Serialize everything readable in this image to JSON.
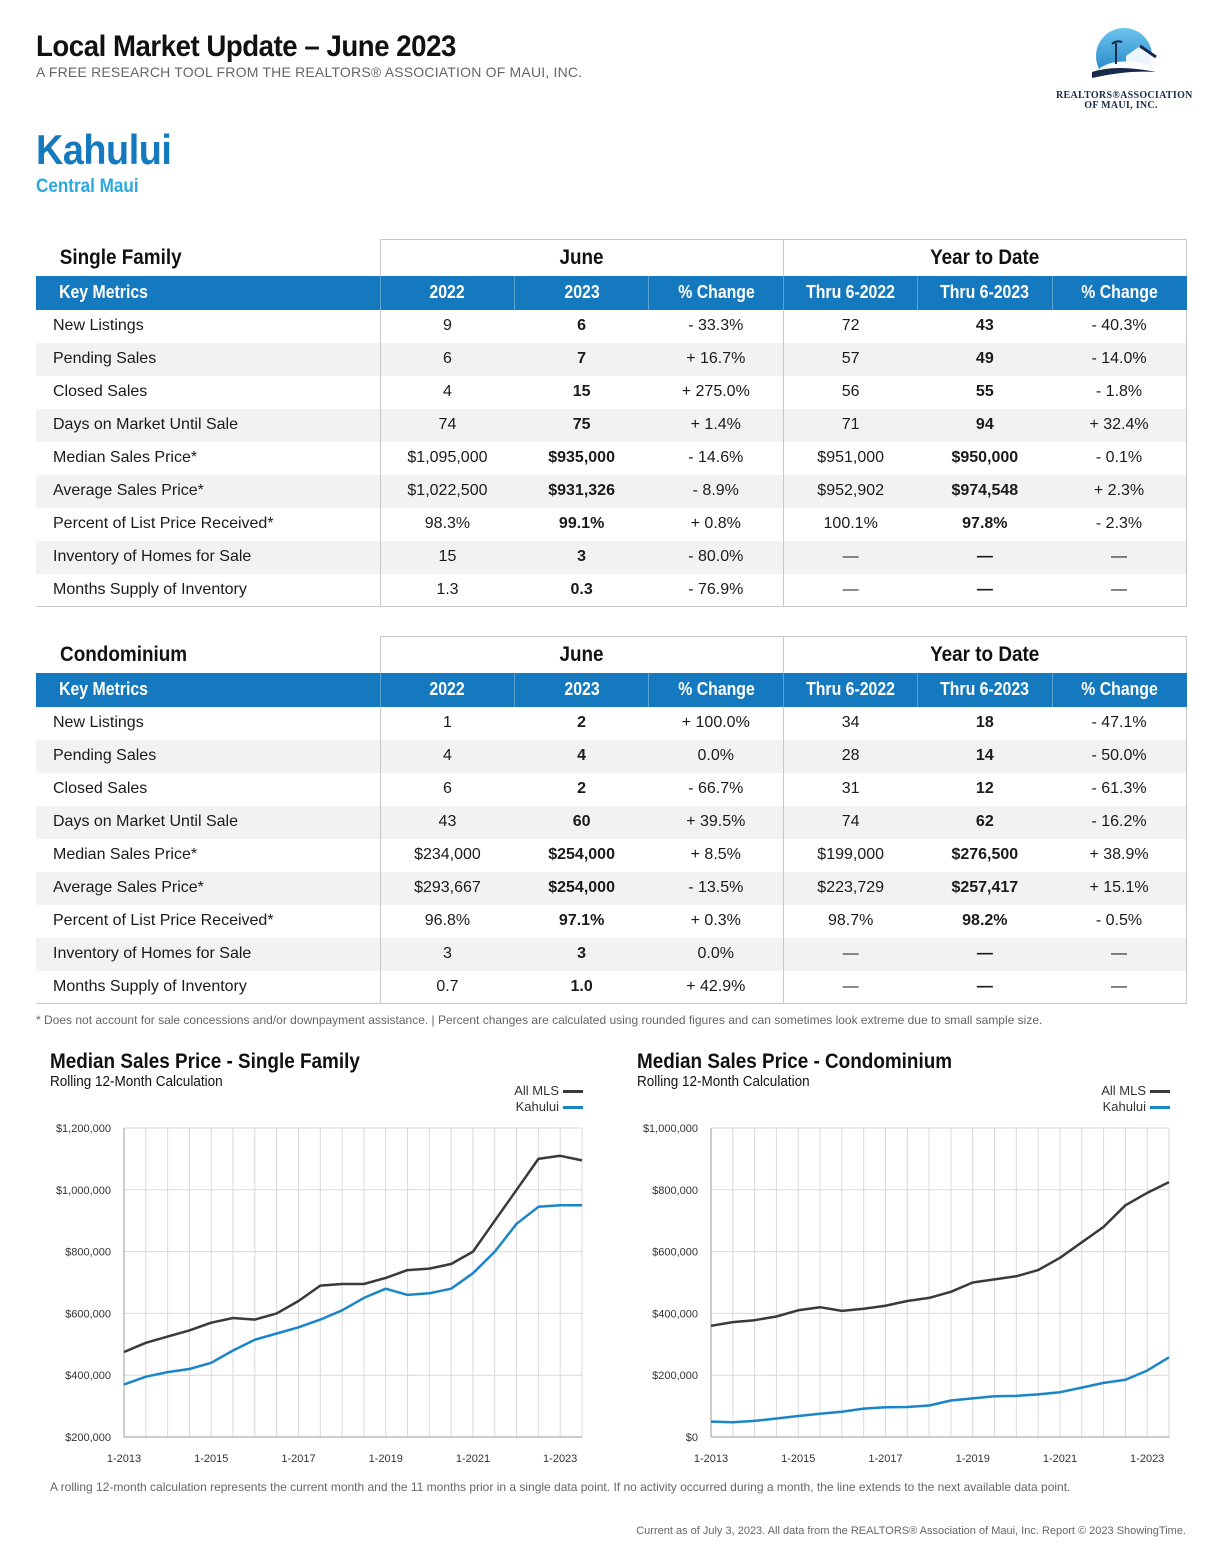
{
  "header": {
    "title": "Local Market Update – June 2023",
    "subtitle": "A FREE RESEARCH TOOL FROM THE REALTORS® ASSOCIATION OF MAUI, INC.",
    "logo_line1": "REALTORS®ASSOCIATION",
    "logo_line2": "OF MAUI, INC."
  },
  "location": {
    "city": "Kahului",
    "region": "Central Maui"
  },
  "columns": {
    "group_month": "June",
    "group_ytd": "Year to Date",
    "key_metrics": "Key Metrics",
    "c2022": "2022",
    "c2023": "2023",
    "pct": "% Change",
    "thru2022": "Thru 6-2022",
    "thru2023": "Thru 6-2023"
  },
  "single_family": {
    "title": "Single Family",
    "rows": [
      [
        "New Listings",
        "9",
        "6",
        "- 33.3%",
        "72",
        "43",
        "- 40.3%"
      ],
      [
        "Pending Sales",
        "6",
        "7",
        "+ 16.7%",
        "57",
        "49",
        "- 14.0%"
      ],
      [
        "Closed Sales",
        "4",
        "15",
        "+ 275.0%",
        "56",
        "55",
        "- 1.8%"
      ],
      [
        "Days on Market Until Sale",
        "74",
        "75",
        "+ 1.4%",
        "71",
        "94",
        "+ 32.4%"
      ],
      [
        "Median Sales Price*",
        "$1,095,000",
        "$935,000",
        "- 14.6%",
        "$951,000",
        "$950,000",
        "- 0.1%"
      ],
      [
        "Average Sales Price*",
        "$1,022,500",
        "$931,326",
        "- 8.9%",
        "$952,902",
        "$974,548",
        "+ 2.3%"
      ],
      [
        "Percent of List Price Received*",
        "98.3%",
        "99.1%",
        "+ 0.8%",
        "100.1%",
        "97.8%",
        "- 2.3%"
      ],
      [
        "Inventory of Homes for Sale",
        "15",
        "3",
        "- 80.0%",
        "—",
        "—",
        "—"
      ],
      [
        "Months Supply of Inventory",
        "1.3",
        "0.3",
        "- 76.9%",
        "—",
        "—",
        "—"
      ]
    ]
  },
  "condominium": {
    "title": "Condominium",
    "rows": [
      [
        "New Listings",
        "1",
        "2",
        "+ 100.0%",
        "34",
        "18",
        "- 47.1%"
      ],
      [
        "Pending Sales",
        "4",
        "4",
        "0.0%",
        "28",
        "14",
        "- 50.0%"
      ],
      [
        "Closed Sales",
        "6",
        "2",
        "- 66.7%",
        "31",
        "12",
        "- 61.3%"
      ],
      [
        "Days on Market Until Sale",
        "43",
        "60",
        "+ 39.5%",
        "74",
        "62",
        "- 16.2%"
      ],
      [
        "Median Sales Price*",
        "$234,000",
        "$254,000",
        "+ 8.5%",
        "$199,000",
        "$276,500",
        "+ 38.9%"
      ],
      [
        "Average Sales Price*",
        "$293,667",
        "$254,000",
        "- 13.5%",
        "$223,729",
        "$257,417",
        "+ 15.1%"
      ],
      [
        "Percent of List Price Received*",
        "96.8%",
        "97.1%",
        "+ 0.3%",
        "98.7%",
        "98.2%",
        "- 0.5%"
      ],
      [
        "Inventory of Homes for Sale",
        "3",
        "3",
        "0.0%",
        "—",
        "—",
        "—"
      ],
      [
        "Months Supply of Inventory",
        "0.7",
        "1.0",
        "+ 42.9%",
        "—",
        "—",
        "—"
      ]
    ]
  },
  "footnote": "* Does not account for sale concessions and/or downpayment assistance. | Percent changes are calculated using rounded figures and can sometimes look extreme due to small sample size.",
  "colors": {
    "accent": "#1479be",
    "all_mls": "#3a3a3a",
    "kahului": "#1a85c8"
  },
  "chart_data": [
    {
      "type": "line",
      "title": "Median Sales Price - Single Family",
      "subtitle": "Rolling 12-Month Calculation",
      "ylim": [
        200000,
        1200000
      ],
      "yticks": [
        200000,
        400000,
        600000,
        800000,
        1000000,
        1200000
      ],
      "ytick_labels": [
        "$200,000",
        "$400,000",
        "$600,000",
        "$800,000",
        "$1,000,000",
        "$1,200,000"
      ],
      "xticks": [
        2013.0,
        2015.0,
        2017.0,
        2019.0,
        2021.0,
        2023.0
      ],
      "xtick_labels": [
        "1-2013",
        "1-2015",
        "1-2017",
        "1-2019",
        "1-2021",
        "1-2023"
      ],
      "xlim": [
        2013.0,
        2023.5
      ],
      "grid": true,
      "legend_position": "top-right",
      "series": [
        {
          "name": "All MLS",
          "color": "#3a3a3a",
          "points": [
            [
              2013.0,
              475000
            ],
            [
              2013.5,
              505000
            ],
            [
              2014.0,
              525000
            ],
            [
              2014.5,
              545000
            ],
            [
              2015.0,
              570000
            ],
            [
              2015.5,
              585000
            ],
            [
              2016.0,
              580000
            ],
            [
              2016.5,
              600000
            ],
            [
              2017.0,
              640000
            ],
            [
              2017.5,
              690000
            ],
            [
              2018.0,
              695000
            ],
            [
              2018.5,
              695000
            ],
            [
              2019.0,
              715000
            ],
            [
              2019.5,
              740000
            ],
            [
              2020.0,
              745000
            ],
            [
              2020.5,
              760000
            ],
            [
              2021.0,
              800000
            ],
            [
              2021.5,
              900000
            ],
            [
              2022.0,
              1000000
            ],
            [
              2022.5,
              1100000
            ],
            [
              2023.0,
              1110000
            ],
            [
              2023.5,
              1095000
            ]
          ]
        },
        {
          "name": "Kahului",
          "color": "#1a85c8",
          "points": [
            [
              2013.0,
              370000
            ],
            [
              2013.5,
              395000
            ],
            [
              2014.0,
              410000
            ],
            [
              2014.5,
              420000
            ],
            [
              2015.0,
              440000
            ],
            [
              2015.5,
              480000
            ],
            [
              2016.0,
              515000
            ],
            [
              2016.5,
              535000
            ],
            [
              2017.0,
              555000
            ],
            [
              2017.5,
              580000
            ],
            [
              2018.0,
              610000
            ],
            [
              2018.5,
              650000
            ],
            [
              2019.0,
              680000
            ],
            [
              2019.5,
              660000
            ],
            [
              2020.0,
              665000
            ],
            [
              2020.5,
              680000
            ],
            [
              2021.0,
              730000
            ],
            [
              2021.5,
              800000
            ],
            [
              2022.0,
              890000
            ],
            [
              2022.5,
              945000
            ],
            [
              2023.0,
              950000
            ],
            [
              2023.5,
              950000
            ]
          ]
        }
      ]
    },
    {
      "type": "line",
      "title": "Median Sales Price - Condominium",
      "subtitle": "Rolling 12-Month Calculation",
      "ylim": [
        0,
        1000000
      ],
      "yticks": [
        0,
        200000,
        400000,
        600000,
        800000,
        1000000
      ],
      "ytick_labels": [
        "$0",
        "$200,000",
        "$400,000",
        "$600,000",
        "$800,000",
        "$1,000,000"
      ],
      "xticks": [
        2013.0,
        2015.0,
        2017.0,
        2019.0,
        2021.0,
        2023.0
      ],
      "xtick_labels": [
        "1-2013",
        "1-2015",
        "1-2017",
        "1-2019",
        "1-2021",
        "1-2023"
      ],
      "xlim": [
        2013.0,
        2023.5
      ],
      "grid": true,
      "legend_position": "top-right",
      "series": [
        {
          "name": "All MLS",
          "color": "#3a3a3a",
          "points": [
            [
              2013.0,
              360000
            ],
            [
              2013.5,
              372000
            ],
            [
              2014.0,
              378000
            ],
            [
              2014.5,
              390000
            ],
            [
              2015.0,
              410000
            ],
            [
              2015.5,
              420000
            ],
            [
              2016.0,
              408000
            ],
            [
              2016.5,
              415000
            ],
            [
              2017.0,
              425000
            ],
            [
              2017.5,
              440000
            ],
            [
              2018.0,
              450000
            ],
            [
              2018.5,
              470000
            ],
            [
              2019.0,
              500000
            ],
            [
              2019.5,
              510000
            ],
            [
              2020.0,
              520000
            ],
            [
              2020.5,
              540000
            ],
            [
              2021.0,
              580000
            ],
            [
              2021.5,
              630000
            ],
            [
              2022.0,
              680000
            ],
            [
              2022.5,
              750000
            ],
            [
              2023.0,
              790000
            ],
            [
              2023.5,
              825000
            ]
          ]
        },
        {
          "name": "Kahului",
          "color": "#1a85c8",
          "points": [
            [
              2013.0,
              50000
            ],
            [
              2013.5,
              48000
            ],
            [
              2014.0,
              52000
            ],
            [
              2014.5,
              60000
            ],
            [
              2015.0,
              68000
            ],
            [
              2015.5,
              75000
            ],
            [
              2016.0,
              82000
            ],
            [
              2016.5,
              92000
            ],
            [
              2017.0,
              96000
            ],
            [
              2017.5,
              97000
            ],
            [
              2018.0,
              102000
            ],
            [
              2018.5,
              118000
            ],
            [
              2019.0,
              125000
            ],
            [
              2019.5,
              132000
            ],
            [
              2020.0,
              133000
            ],
            [
              2020.5,
              138000
            ],
            [
              2021.0,
              145000
            ],
            [
              2021.5,
              160000
            ],
            [
              2022.0,
              175000
            ],
            [
              2022.5,
              185000
            ],
            [
              2023.0,
              215000
            ],
            [
              2023.5,
              258000
            ]
          ]
        }
      ]
    }
  ],
  "bottom_note": "A rolling 12-month calculation represents the current month and the 11 months prior in a single data point. If no activity occurred during a month, the line extends to the next available data point.",
  "credit": "Current as of July 3, 2023. All data from the REALTORS® Association of Maui, Inc. Report © 2023 ShowingTime."
}
